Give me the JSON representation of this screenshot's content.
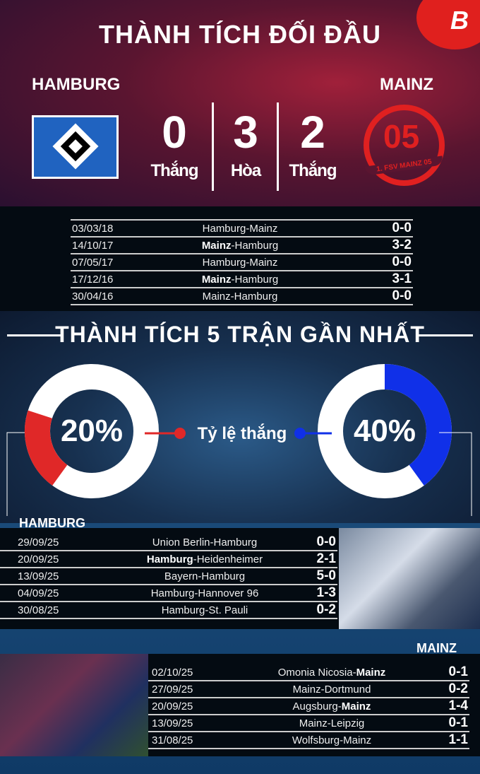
{
  "header": {
    "title": "THÀNH TÍCH ĐỐI ĐẦU",
    "logo": "B"
  },
  "home": {
    "name": "HAMBURG",
    "wins": "0",
    "wins_label": "Thắng"
  },
  "draws": {
    "value": "3",
    "label": "Hòa"
  },
  "away": {
    "name": "MAINZ",
    "wins": "2",
    "wins_label": "Thắng",
    "crest_text": "1. FSV MAINZ 05"
  },
  "h2h": [
    {
      "date": "03/03/18",
      "home": "Hamburg",
      "away": "Mainz",
      "winner": "",
      "score": "0-0"
    },
    {
      "date": "14/10/17",
      "home": "Mainz",
      "away": "Hamburg",
      "winner": "home",
      "score": "3-2"
    },
    {
      "date": "07/05/17",
      "home": "Hamburg",
      "away": "Mainz",
      "winner": "",
      "score": "0-0"
    },
    {
      "date": "17/12/16",
      "home": "Mainz",
      "away": "Hamburg",
      "winner": "home",
      "score": "3-1"
    },
    {
      "date": "30/04/16",
      "home": "Mainz",
      "away": "Hamburg",
      "winner": "",
      "score": "0-0"
    }
  ],
  "form": {
    "title": "THÀNH TÍCH 5 TRẬN GẦN NHẤT",
    "win_rate_label": "Tỷ lệ thắng",
    "home_rate": {
      "label": "20%",
      "value": 20,
      "color": "#e02828"
    },
    "away_rate": {
      "label": "40%",
      "value": 40,
      "color": "#1030e8"
    }
  },
  "home_recent": {
    "name": "HAMBURG",
    "matches": [
      {
        "date": "29/09/25",
        "home": "Union Berlin",
        "away": "Hamburg",
        "winner": "",
        "score": "0-0"
      },
      {
        "date": "20/09/25",
        "home": "Hamburg",
        "away": "Heidenheimer",
        "winner": "home",
        "score": "2-1"
      },
      {
        "date": "13/09/25",
        "home": "Bayern",
        "away": "Hamburg",
        "winner": "",
        "score": "5-0"
      },
      {
        "date": "04/09/25",
        "home": "Hamburg",
        "away": "Hannover 96",
        "winner": "",
        "score": "1-3"
      },
      {
        "date": "30/08/25",
        "home": "Hamburg",
        "away": "St. Pauli",
        "winner": "",
        "score": "0-2"
      }
    ]
  },
  "away_recent": {
    "name": "MAINZ",
    "matches": [
      {
        "date": "02/10/25",
        "home": "Omonia Nicosia",
        "away": "Mainz",
        "winner": "away",
        "score": "0-1"
      },
      {
        "date": "27/09/25",
        "home": "Mainz",
        "away": "Dortmund",
        "winner": "",
        "score": "0-2"
      },
      {
        "date": "20/09/25",
        "home": "Augsburg",
        "away": "Mainz",
        "winner": "away",
        "score": "1-4"
      },
      {
        "date": "13/09/25",
        "home": "Mainz",
        "away": "Leipzig",
        "winner": "",
        "score": "0-1"
      },
      {
        "date": "31/08/25",
        "home": "Wolfsburg",
        "away": "Mainz",
        "winner": "",
        "score": "1-1"
      }
    ]
  }
}
